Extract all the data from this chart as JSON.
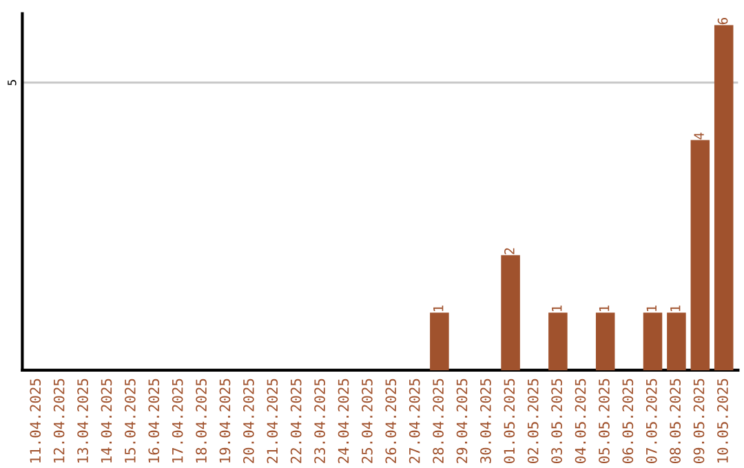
{
  "chart_data": {
    "type": "bar",
    "categories": [
      "11.04.2025",
      "12.04.2025",
      "13.04.2025",
      "14.04.2025",
      "15.04.2025",
      "16.04.2025",
      "17.04.2025",
      "18.04.2025",
      "19.04.2025",
      "20.04.2025",
      "21.04.2025",
      "22.04.2025",
      "23.04.2025",
      "24.04.2025",
      "25.04.2025",
      "26.04.2025",
      "27.04.2025",
      "28.04.2025",
      "29.04.2025",
      "30.04.2025",
      "01.05.2025",
      "02.05.2025",
      "03.05.2025",
      "04.05.2025",
      "05.05.2025",
      "06.05.2025",
      "07.05.2025",
      "08.05.2025",
      "09.05.2025",
      "10.05.2025"
    ],
    "values": [
      null,
      null,
      null,
      null,
      null,
      null,
      null,
      null,
      null,
      null,
      null,
      null,
      null,
      null,
      null,
      null,
      null,
      1,
      null,
      null,
      2,
      null,
      1,
      null,
      1,
      null,
      1,
      1,
      4,
      6
    ],
    "value_labels": [
      null,
      null,
      null,
      null,
      null,
      null,
      null,
      null,
      null,
      null,
      null,
      null,
      null,
      null,
      null,
      null,
      null,
      "1",
      null,
      null,
      "2",
      null,
      "1",
      null,
      "1",
      null,
      "1",
      "1",
      "4",
      "6"
    ],
    "color": "#a0522d",
    "ylim": [
      0,
      6.2
    ],
    "ref_lines": [
      {
        "axis": "y",
        "value": 5,
        "label": "5",
        "color": "#c8c8c8"
      }
    ]
  }
}
